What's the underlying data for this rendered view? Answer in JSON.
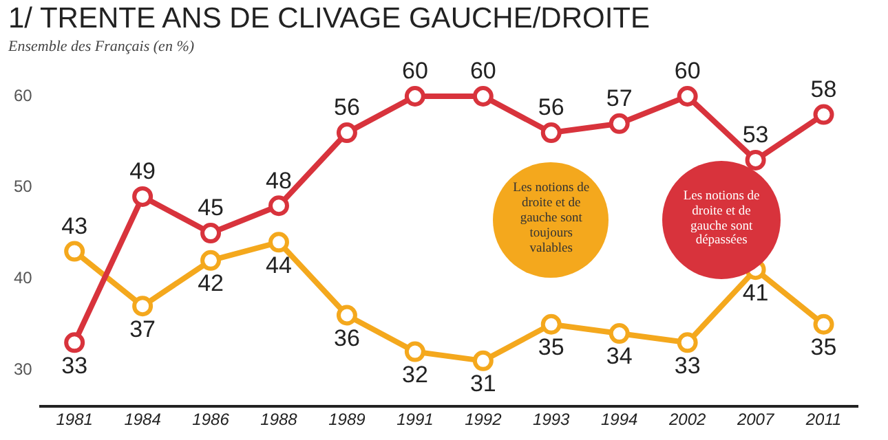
{
  "chart_data": {
    "type": "line",
    "title": "1/ TRENTE ANS DE CLIVAGE GAUCHE/DROITE",
    "subtitle": "Ensemble des Français (en %)",
    "categories": [
      "1981",
      "1984",
      "1986",
      "1988",
      "1989",
      "1991",
      "1992",
      "1993",
      "1994",
      "2002",
      "2007",
      "2011"
    ],
    "series": [
      {
        "color": "#d8333c",
        "values": [
          33,
          49,
          45,
          48,
          56,
          60,
          60,
          56,
          57,
          60,
          53,
          58
        ]
      },
      {
        "color": "#f4a81d",
        "values": [
          43,
          37,
          42,
          44,
          36,
          32,
          31,
          35,
          34,
          33,
          41,
          35
        ]
      }
    ],
    "ylim": [
      26,
      60
    ],
    "yticks": [
      30,
      40,
      50,
      60
    ],
    "grid": false,
    "legend": false,
    "marker": "circle",
    "line_style": "solid",
    "data_labels": true,
    "annotations": [
      "Les notions de droite et de gauche sont toujours valables",
      "Les notions de droite et de gauche sont dépassées"
    ]
  }
}
